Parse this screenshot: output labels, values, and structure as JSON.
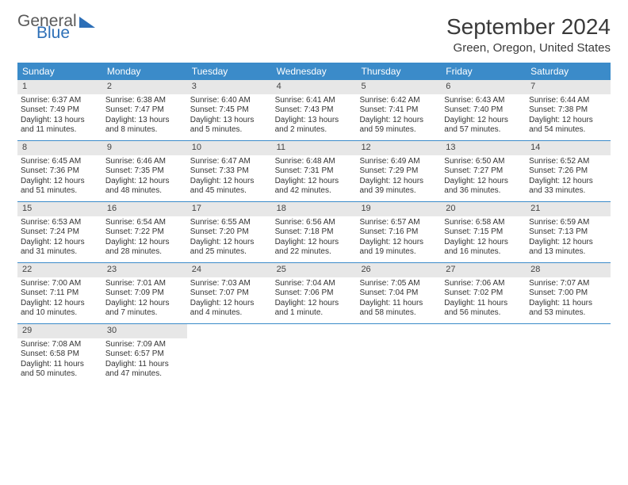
{
  "logo": {
    "word1": "General",
    "word2": "Blue"
  },
  "title": "September 2024",
  "location": "Green, Oregon, United States",
  "dows": [
    "Sunday",
    "Monday",
    "Tuesday",
    "Wednesday",
    "Thursday",
    "Friday",
    "Saturday"
  ],
  "colors": {
    "header_bg": "#3b8bc9",
    "daynum_bg": "#e7e7e7",
    "week_border": "#3b8bc9",
    "logo_blue": "#2d6fb7",
    "text": "#333333"
  },
  "weeks": [
    [
      {
        "n": "1",
        "sr": "Sunrise: 6:37 AM",
        "ss": "Sunset: 7:49 PM",
        "d1": "Daylight: 13 hours",
        "d2": "and 11 minutes."
      },
      {
        "n": "2",
        "sr": "Sunrise: 6:38 AM",
        "ss": "Sunset: 7:47 PM",
        "d1": "Daylight: 13 hours",
        "d2": "and 8 minutes."
      },
      {
        "n": "3",
        "sr": "Sunrise: 6:40 AM",
        "ss": "Sunset: 7:45 PM",
        "d1": "Daylight: 13 hours",
        "d2": "and 5 minutes."
      },
      {
        "n": "4",
        "sr": "Sunrise: 6:41 AM",
        "ss": "Sunset: 7:43 PM",
        "d1": "Daylight: 13 hours",
        "d2": "and 2 minutes."
      },
      {
        "n": "5",
        "sr": "Sunrise: 6:42 AM",
        "ss": "Sunset: 7:41 PM",
        "d1": "Daylight: 12 hours",
        "d2": "and 59 minutes."
      },
      {
        "n": "6",
        "sr": "Sunrise: 6:43 AM",
        "ss": "Sunset: 7:40 PM",
        "d1": "Daylight: 12 hours",
        "d2": "and 57 minutes."
      },
      {
        "n": "7",
        "sr": "Sunrise: 6:44 AM",
        "ss": "Sunset: 7:38 PM",
        "d1": "Daylight: 12 hours",
        "d2": "and 54 minutes."
      }
    ],
    [
      {
        "n": "8",
        "sr": "Sunrise: 6:45 AM",
        "ss": "Sunset: 7:36 PM",
        "d1": "Daylight: 12 hours",
        "d2": "and 51 minutes."
      },
      {
        "n": "9",
        "sr": "Sunrise: 6:46 AM",
        "ss": "Sunset: 7:35 PM",
        "d1": "Daylight: 12 hours",
        "d2": "and 48 minutes."
      },
      {
        "n": "10",
        "sr": "Sunrise: 6:47 AM",
        "ss": "Sunset: 7:33 PM",
        "d1": "Daylight: 12 hours",
        "d2": "and 45 minutes."
      },
      {
        "n": "11",
        "sr": "Sunrise: 6:48 AM",
        "ss": "Sunset: 7:31 PM",
        "d1": "Daylight: 12 hours",
        "d2": "and 42 minutes."
      },
      {
        "n": "12",
        "sr": "Sunrise: 6:49 AM",
        "ss": "Sunset: 7:29 PM",
        "d1": "Daylight: 12 hours",
        "d2": "and 39 minutes."
      },
      {
        "n": "13",
        "sr": "Sunrise: 6:50 AM",
        "ss": "Sunset: 7:27 PM",
        "d1": "Daylight: 12 hours",
        "d2": "and 36 minutes."
      },
      {
        "n": "14",
        "sr": "Sunrise: 6:52 AM",
        "ss": "Sunset: 7:26 PM",
        "d1": "Daylight: 12 hours",
        "d2": "and 33 minutes."
      }
    ],
    [
      {
        "n": "15",
        "sr": "Sunrise: 6:53 AM",
        "ss": "Sunset: 7:24 PM",
        "d1": "Daylight: 12 hours",
        "d2": "and 31 minutes."
      },
      {
        "n": "16",
        "sr": "Sunrise: 6:54 AM",
        "ss": "Sunset: 7:22 PM",
        "d1": "Daylight: 12 hours",
        "d2": "and 28 minutes."
      },
      {
        "n": "17",
        "sr": "Sunrise: 6:55 AM",
        "ss": "Sunset: 7:20 PM",
        "d1": "Daylight: 12 hours",
        "d2": "and 25 minutes."
      },
      {
        "n": "18",
        "sr": "Sunrise: 6:56 AM",
        "ss": "Sunset: 7:18 PM",
        "d1": "Daylight: 12 hours",
        "d2": "and 22 minutes."
      },
      {
        "n": "19",
        "sr": "Sunrise: 6:57 AM",
        "ss": "Sunset: 7:16 PM",
        "d1": "Daylight: 12 hours",
        "d2": "and 19 minutes."
      },
      {
        "n": "20",
        "sr": "Sunrise: 6:58 AM",
        "ss": "Sunset: 7:15 PM",
        "d1": "Daylight: 12 hours",
        "d2": "and 16 minutes."
      },
      {
        "n": "21",
        "sr": "Sunrise: 6:59 AM",
        "ss": "Sunset: 7:13 PM",
        "d1": "Daylight: 12 hours",
        "d2": "and 13 minutes."
      }
    ],
    [
      {
        "n": "22",
        "sr": "Sunrise: 7:00 AM",
        "ss": "Sunset: 7:11 PM",
        "d1": "Daylight: 12 hours",
        "d2": "and 10 minutes."
      },
      {
        "n": "23",
        "sr": "Sunrise: 7:01 AM",
        "ss": "Sunset: 7:09 PM",
        "d1": "Daylight: 12 hours",
        "d2": "and 7 minutes."
      },
      {
        "n": "24",
        "sr": "Sunrise: 7:03 AM",
        "ss": "Sunset: 7:07 PM",
        "d1": "Daylight: 12 hours",
        "d2": "and 4 minutes."
      },
      {
        "n": "25",
        "sr": "Sunrise: 7:04 AM",
        "ss": "Sunset: 7:06 PM",
        "d1": "Daylight: 12 hours",
        "d2": "and 1 minute."
      },
      {
        "n": "26",
        "sr": "Sunrise: 7:05 AM",
        "ss": "Sunset: 7:04 PM",
        "d1": "Daylight: 11 hours",
        "d2": "and 58 minutes."
      },
      {
        "n": "27",
        "sr": "Sunrise: 7:06 AM",
        "ss": "Sunset: 7:02 PM",
        "d1": "Daylight: 11 hours",
        "d2": "and 56 minutes."
      },
      {
        "n": "28",
        "sr": "Sunrise: 7:07 AM",
        "ss": "Sunset: 7:00 PM",
        "d1": "Daylight: 11 hours",
        "d2": "and 53 minutes."
      }
    ],
    [
      {
        "n": "29",
        "sr": "Sunrise: 7:08 AM",
        "ss": "Sunset: 6:58 PM",
        "d1": "Daylight: 11 hours",
        "d2": "and 50 minutes."
      },
      {
        "n": "30",
        "sr": "Sunrise: 7:09 AM",
        "ss": "Sunset: 6:57 PM",
        "d1": "Daylight: 11 hours",
        "d2": "and 47 minutes."
      },
      {
        "empty": true
      },
      {
        "empty": true
      },
      {
        "empty": true
      },
      {
        "empty": true
      },
      {
        "empty": true
      }
    ]
  ]
}
